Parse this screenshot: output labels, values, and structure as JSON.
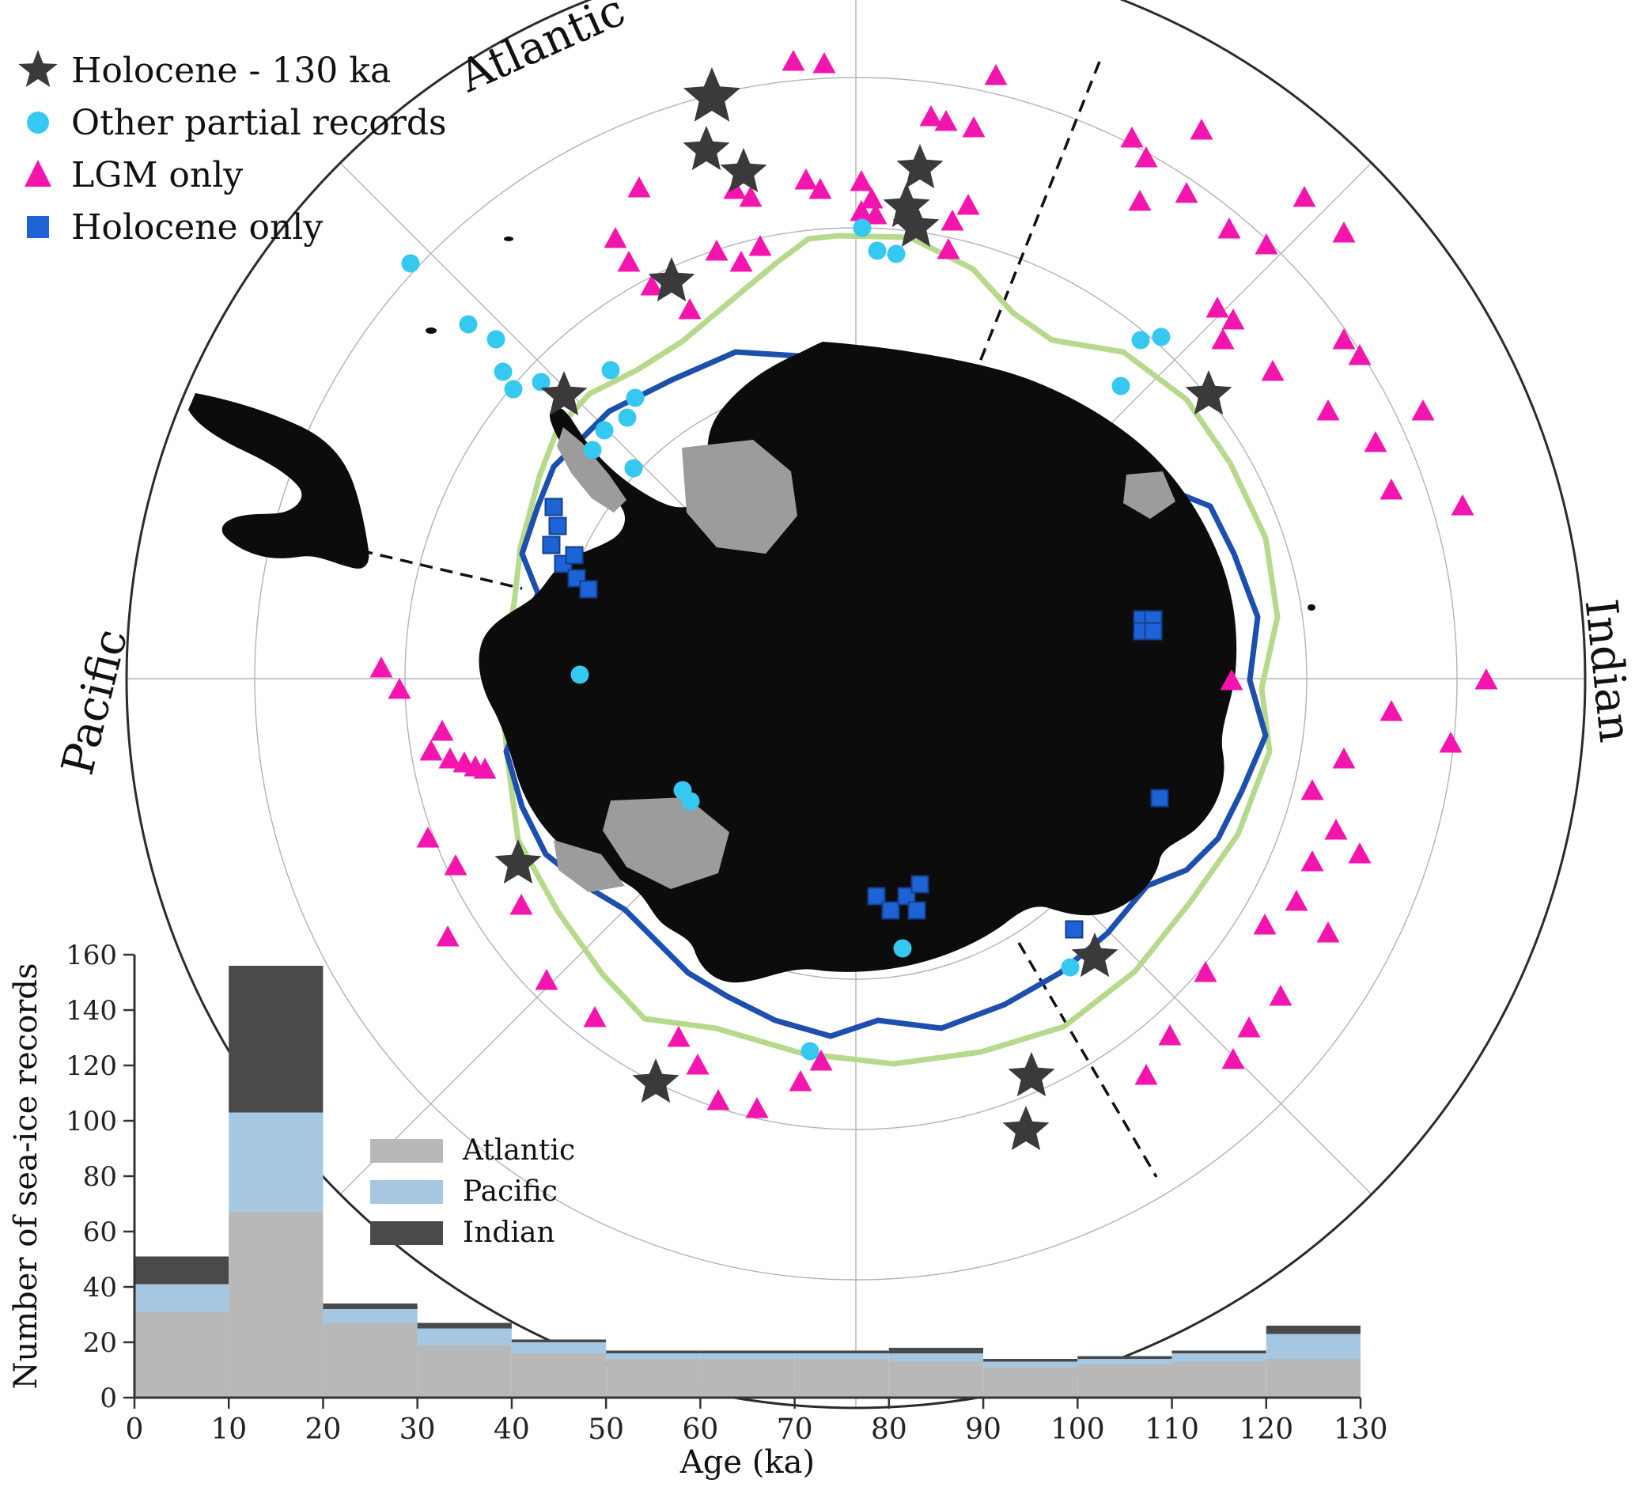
{
  "legend": {
    "items": [
      {
        "marker": "star",
        "label": "Holocene - 130 ka",
        "color": "#3a3a3a"
      },
      {
        "marker": "circle",
        "label": "Other partial records",
        "color": "#35c8f0"
      },
      {
        "marker": "triangle",
        "label": "LGM only",
        "color": "#f414ae"
      },
      {
        "marker": "square",
        "label": "Holocene only",
        "color": "#1e63d6"
      }
    ]
  },
  "map": {
    "sectors": {
      "atlantic": "Atlantic",
      "pacific": "Pacific",
      "indian": "Indian"
    },
    "colors": {
      "land": "#0c0c0c",
      "ice_shelf": "#9c9c9c",
      "green_line": "#b6d98c",
      "blue_line": "#1d4fae",
      "graticule": "#b3b3b3",
      "outer_circle": "#2b2b2b",
      "dashed_line": "#111111"
    },
    "points": {
      "stars": [
        [
          900,
          123
        ],
        [
          893,
          190
        ],
        [
          940,
          218
        ],
        [
          1163,
          213
        ],
        [
          1146,
          262
        ],
        [
          1158,
          287
        ],
        [
          849,
          356
        ],
        [
          713,
          500
        ],
        [
          1528,
          499
        ],
        [
          655,
          1092
        ],
        [
          1384,
          1210
        ],
        [
          1304,
          1361
        ],
        [
          1297,
          1429
        ],
        [
          829,
          1369
        ]
      ],
      "circles": [
        [
          519,
          333
        ],
        [
          592,
          410
        ],
        [
          627,
          429
        ],
        [
          636,
          470
        ],
        [
          649,
          492
        ],
        [
          684,
          483
        ],
        [
          772,
          468
        ],
        [
          803,
          503
        ],
        [
          793,
          528
        ],
        [
          764,
          544
        ],
        [
          749,
          569
        ],
        [
          801,
          592
        ],
        [
          1090,
          288
        ],
        [
          1109,
          317
        ],
        [
          1133,
          321
        ],
        [
          1442,
          430
        ],
        [
          1468,
          426
        ],
        [
          1417,
          488
        ],
        [
          733,
          853
        ],
        [
          863,
          999
        ],
        [
          873,
          1013
        ],
        [
          1141,
          1199
        ],
        [
          1024,
          1329
        ],
        [
          1353,
          1223
        ]
      ],
      "squares": [
        [
          700,
          641
        ],
        [
          705,
          665
        ],
        [
          697,
          689
        ],
        [
          712,
          713
        ],
        [
          729,
          731
        ],
        [
          744,
          745
        ],
        [
          726,
          702
        ],
        [
          1444,
          783
        ],
        [
          1458,
          783
        ],
        [
          1444,
          798
        ],
        [
          1458,
          798
        ],
        [
          1466,
          1009
        ],
        [
          1108,
          1133
        ],
        [
          1126,
          1151
        ],
        [
          1146,
          1133
        ],
        [
          1159,
          1151
        ],
        [
          1163,
          1118
        ],
        [
          1358,
          1175
        ]
      ],
      "triangles": [
        [
          1003,
          79
        ],
        [
          1042,
          82
        ],
        [
          1259,
          97
        ],
        [
          1177,
          149
        ],
        [
          1196,
          155
        ],
        [
          1231,
          163
        ],
        [
          808,
          239
        ],
        [
          929,
          241
        ],
        [
          949,
          251
        ],
        [
          1019,
          229
        ],
        [
          1037,
          241
        ],
        [
          1089,
          231
        ],
        [
          1102,
          253
        ],
        [
          1089,
          269
        ],
        [
          1107,
          273
        ],
        [
          961,
          313
        ],
        [
          937,
          333
        ],
        [
          1199,
          317
        ],
        [
          778,
          303
        ],
        [
          795,
          333
        ],
        [
          824,
          363
        ],
        [
          872,
          393
        ],
        [
          1224,
          261
        ],
        [
          1204,
          281
        ],
        [
          906,
          319
        ],
        [
          1431,
          176
        ],
        [
          1449,
          201
        ],
        [
          1500,
          246
        ],
        [
          1441,
          256
        ],
        [
          1519,
          166
        ],
        [
          1554,
          291
        ],
        [
          1601,
          311
        ],
        [
          1649,
          251
        ],
        [
          1699,
          296
        ],
        [
          1539,
          391
        ],
        [
          1559,
          406
        ],
        [
          1546,
          431
        ],
        [
          1609,
          471
        ],
        [
          1699,
          431
        ],
        [
          1719,
          451
        ],
        [
          1679,
          521
        ],
        [
          1739,
          561
        ],
        [
          1799,
          521
        ],
        [
          1759,
          621
        ],
        [
          1849,
          641
        ],
        [
          1879,
          861
        ],
        [
          1834,
          941
        ],
        [
          1759,
          901
        ],
        [
          1699,
          961
        ],
        [
          1659,
          1001
        ],
        [
          1689,
          1051
        ],
        [
          1719,
          1081
        ],
        [
          1659,
          1091
        ],
        [
          1639,
          1141
        ],
        [
          1599,
          1171
        ],
        [
          1679,
          1181
        ],
        [
          1619,
          1261
        ],
        [
          1579,
          1301
        ],
        [
          1559,
          1341
        ],
        [
          1524,
          1231
        ],
        [
          1479,
          1311
        ],
        [
          1449,
          1361
        ],
        [
          1557,
          862
        ],
        [
          482,
          846
        ],
        [
          505,
          873
        ],
        [
          545,
          951
        ],
        [
          569,
          961
        ],
        [
          587,
          966
        ],
        [
          601,
          971
        ],
        [
          613,
          974
        ],
        [
          559,
          926
        ],
        [
          541,
          1061
        ],
        [
          576,
          1096
        ],
        [
          659,
          1146
        ],
        [
          691,
          1241
        ],
        [
          566,
          1186
        ],
        [
          858,
          1313
        ],
        [
          882,
          1348
        ],
        [
          908,
          1393
        ],
        [
          957,
          1403
        ],
        [
          1012,
          1369
        ],
        [
          1038,
          1343
        ],
        [
          752,
          1288
        ]
      ]
    }
  },
  "chart_data": {
    "type": "bar",
    "stacked": true,
    "categories": [
      "0-10",
      "10-20",
      "20-30",
      "30-40",
      "40-50",
      "50-60",
      "60-70",
      "70-80",
      "80-90",
      "90-100",
      "100-110",
      "110-120",
      "120-130"
    ],
    "series": [
      {
        "name": "Atlantic",
        "color": "#b8b8b8",
        "values": [
          31,
          67,
          27,
          19,
          16,
          14,
          14,
          14,
          13,
          11,
          12,
          13,
          14
        ]
      },
      {
        "name": "Pacific",
        "color": "#a6c7e2",
        "values": [
          10,
          36,
          5,
          6,
          4,
          2,
          2,
          2,
          3,
          2,
          2,
          3,
          9
        ]
      },
      {
        "name": "Indian",
        "color": "#4a4a4a",
        "values": [
          10,
          53,
          2,
          2,
          1,
          1,
          1,
          1,
          2,
          1,
          1,
          1,
          3
        ]
      }
    ],
    "totals": [
      51,
      156,
      34,
      27,
      21,
      17,
      17,
      17,
      18,
      14,
      15,
      17,
      26
    ],
    "xlabel": "Age (ka)",
    "ylabel": "Number of sea-ice records",
    "xticks": [
      0,
      10,
      20,
      30,
      40,
      50,
      60,
      70,
      80,
      90,
      100,
      110,
      120,
      130
    ],
    "yticks": [
      0,
      20,
      40,
      60,
      80,
      100,
      120,
      140,
      160
    ],
    "ylim": [
      0,
      160
    ],
    "legend_position": "inside-left"
  }
}
